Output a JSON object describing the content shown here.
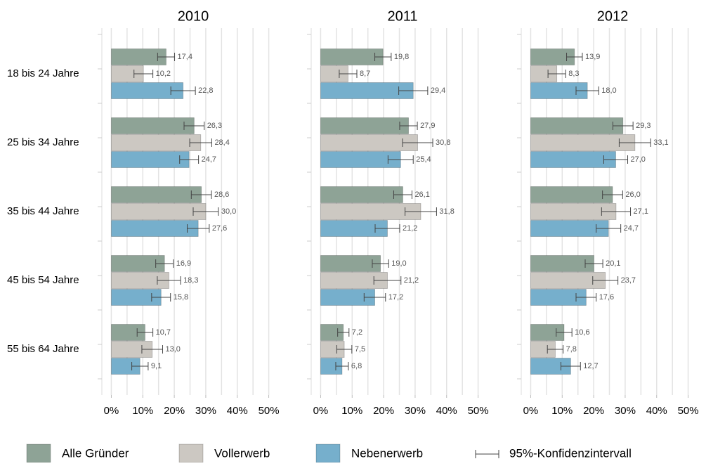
{
  "chart_data": {
    "type": "bar",
    "categories": [
      "18 bis 24 Jahre",
      "25 bis 34 Jahre",
      "35 bis 44 Jahre",
      "45 bis 54 Jahre",
      "55 bis 64 Jahre"
    ],
    "series": [
      {
        "name": "Alle Gründer",
        "color": "#8ea396"
      },
      {
        "name": "Vollerwerb",
        "color": "#ccc8c2"
      },
      {
        "name": "Nebenerwerb",
        "color": "#76afcc"
      }
    ],
    "ci_label": "95%-Konfidenzintervall",
    "xlim": [
      -3,
      55
    ],
    "xticks": [
      {
        "value": 0,
        "label": "0%"
      },
      {
        "value": 10,
        "label": "10%"
      },
      {
        "value": 20,
        "label": "20%"
      },
      {
        "value": 30,
        "label": "30%"
      },
      {
        "value": 40,
        "label": "40%"
      },
      {
        "value": 50,
        "label": "50%"
      }
    ],
    "xgrid": [
      0,
      5,
      10,
      15,
      20,
      25,
      30,
      35,
      40,
      45,
      50
    ],
    "panels": [
      {
        "title": "2010",
        "series": [
          {
            "values": [
              17.4,
              26.3,
              28.6,
              16.9,
              10.7
            ],
            "value_labels": [
              "17,4",
              "26,3",
              "28,6",
              "16,9",
              "10,7"
            ],
            "errors": [
              2.7,
              3.2,
              3.2,
              2.8,
              2.5
            ]
          },
          {
            "values": [
              10.2,
              28.4,
              30.0,
              18.3,
              13.0
            ],
            "value_labels": [
              "10,2",
              "28,4",
              "30,0",
              "18,3",
              "13,0"
            ],
            "errors": [
              3.0,
              3.5,
              4.0,
              3.7,
              3.3
            ]
          },
          {
            "values": [
              22.8,
              24.7,
              27.6,
              15.8,
              9.1
            ],
            "value_labels": [
              "22,8",
              "24,7",
              "27,6",
              "15,8",
              "9,1"
            ],
            "errors": [
              3.9,
              3.0,
              3.5,
              3.0,
              2.6
            ]
          }
        ]
      },
      {
        "title": "2011",
        "series": [
          {
            "values": [
              19.8,
              27.9,
              26.1,
              19.0,
              7.2
            ],
            "value_labels": [
              "19,8",
              "27,9",
              "26,1",
              "19,0",
              "7,2"
            ],
            "errors": [
              2.6,
              2.8,
              2.9,
              2.6,
              1.8
            ]
          },
          {
            "values": [
              8.7,
              30.8,
              31.8,
              21.2,
              7.5
            ],
            "value_labels": [
              "8,7",
              "30,8",
              "31,8",
              "21,2",
              "7,5"
            ],
            "errors": [
              2.8,
              4.8,
              5.0,
              4.3,
              2.4
            ]
          },
          {
            "values": [
              29.4,
              25.4,
              21.2,
              17.2,
              6.8
            ],
            "value_labels": [
              "29,4",
              "25,4",
              "21,2",
              "17,2",
              "6,8"
            ],
            "errors": [
              4.6,
              4.0,
              3.9,
              3.4,
              2.0
            ]
          }
        ]
      },
      {
        "title": "2012",
        "series": [
          {
            "values": [
              13.9,
              29.3,
              26.0,
              20.1,
              10.6
            ],
            "value_labels": [
              "13,9",
              "29,3",
              "26,0",
              "20,1",
              "10,6"
            ],
            "errors": [
              2.5,
              3.2,
              3.2,
              2.8,
              2.5
            ]
          },
          {
            "values": [
              8.3,
              33.1,
              27.1,
              23.7,
              7.8
            ],
            "value_labels": [
              "8,3",
              "33,1",
              "27,1",
              "23,7",
              "7,8"
            ],
            "errors": [
              2.8,
              5.0,
              4.6,
              4.0,
              2.5
            ]
          },
          {
            "values": [
              18.0,
              27.0,
              24.7,
              17.6,
              12.7
            ],
            "value_labels": [
              "18,0",
              "27,0",
              "24,7",
              "17,6",
              "12,7"
            ],
            "errors": [
              3.6,
              3.8,
              3.9,
              3.2,
              3.1
            ]
          }
        ]
      }
    ]
  }
}
